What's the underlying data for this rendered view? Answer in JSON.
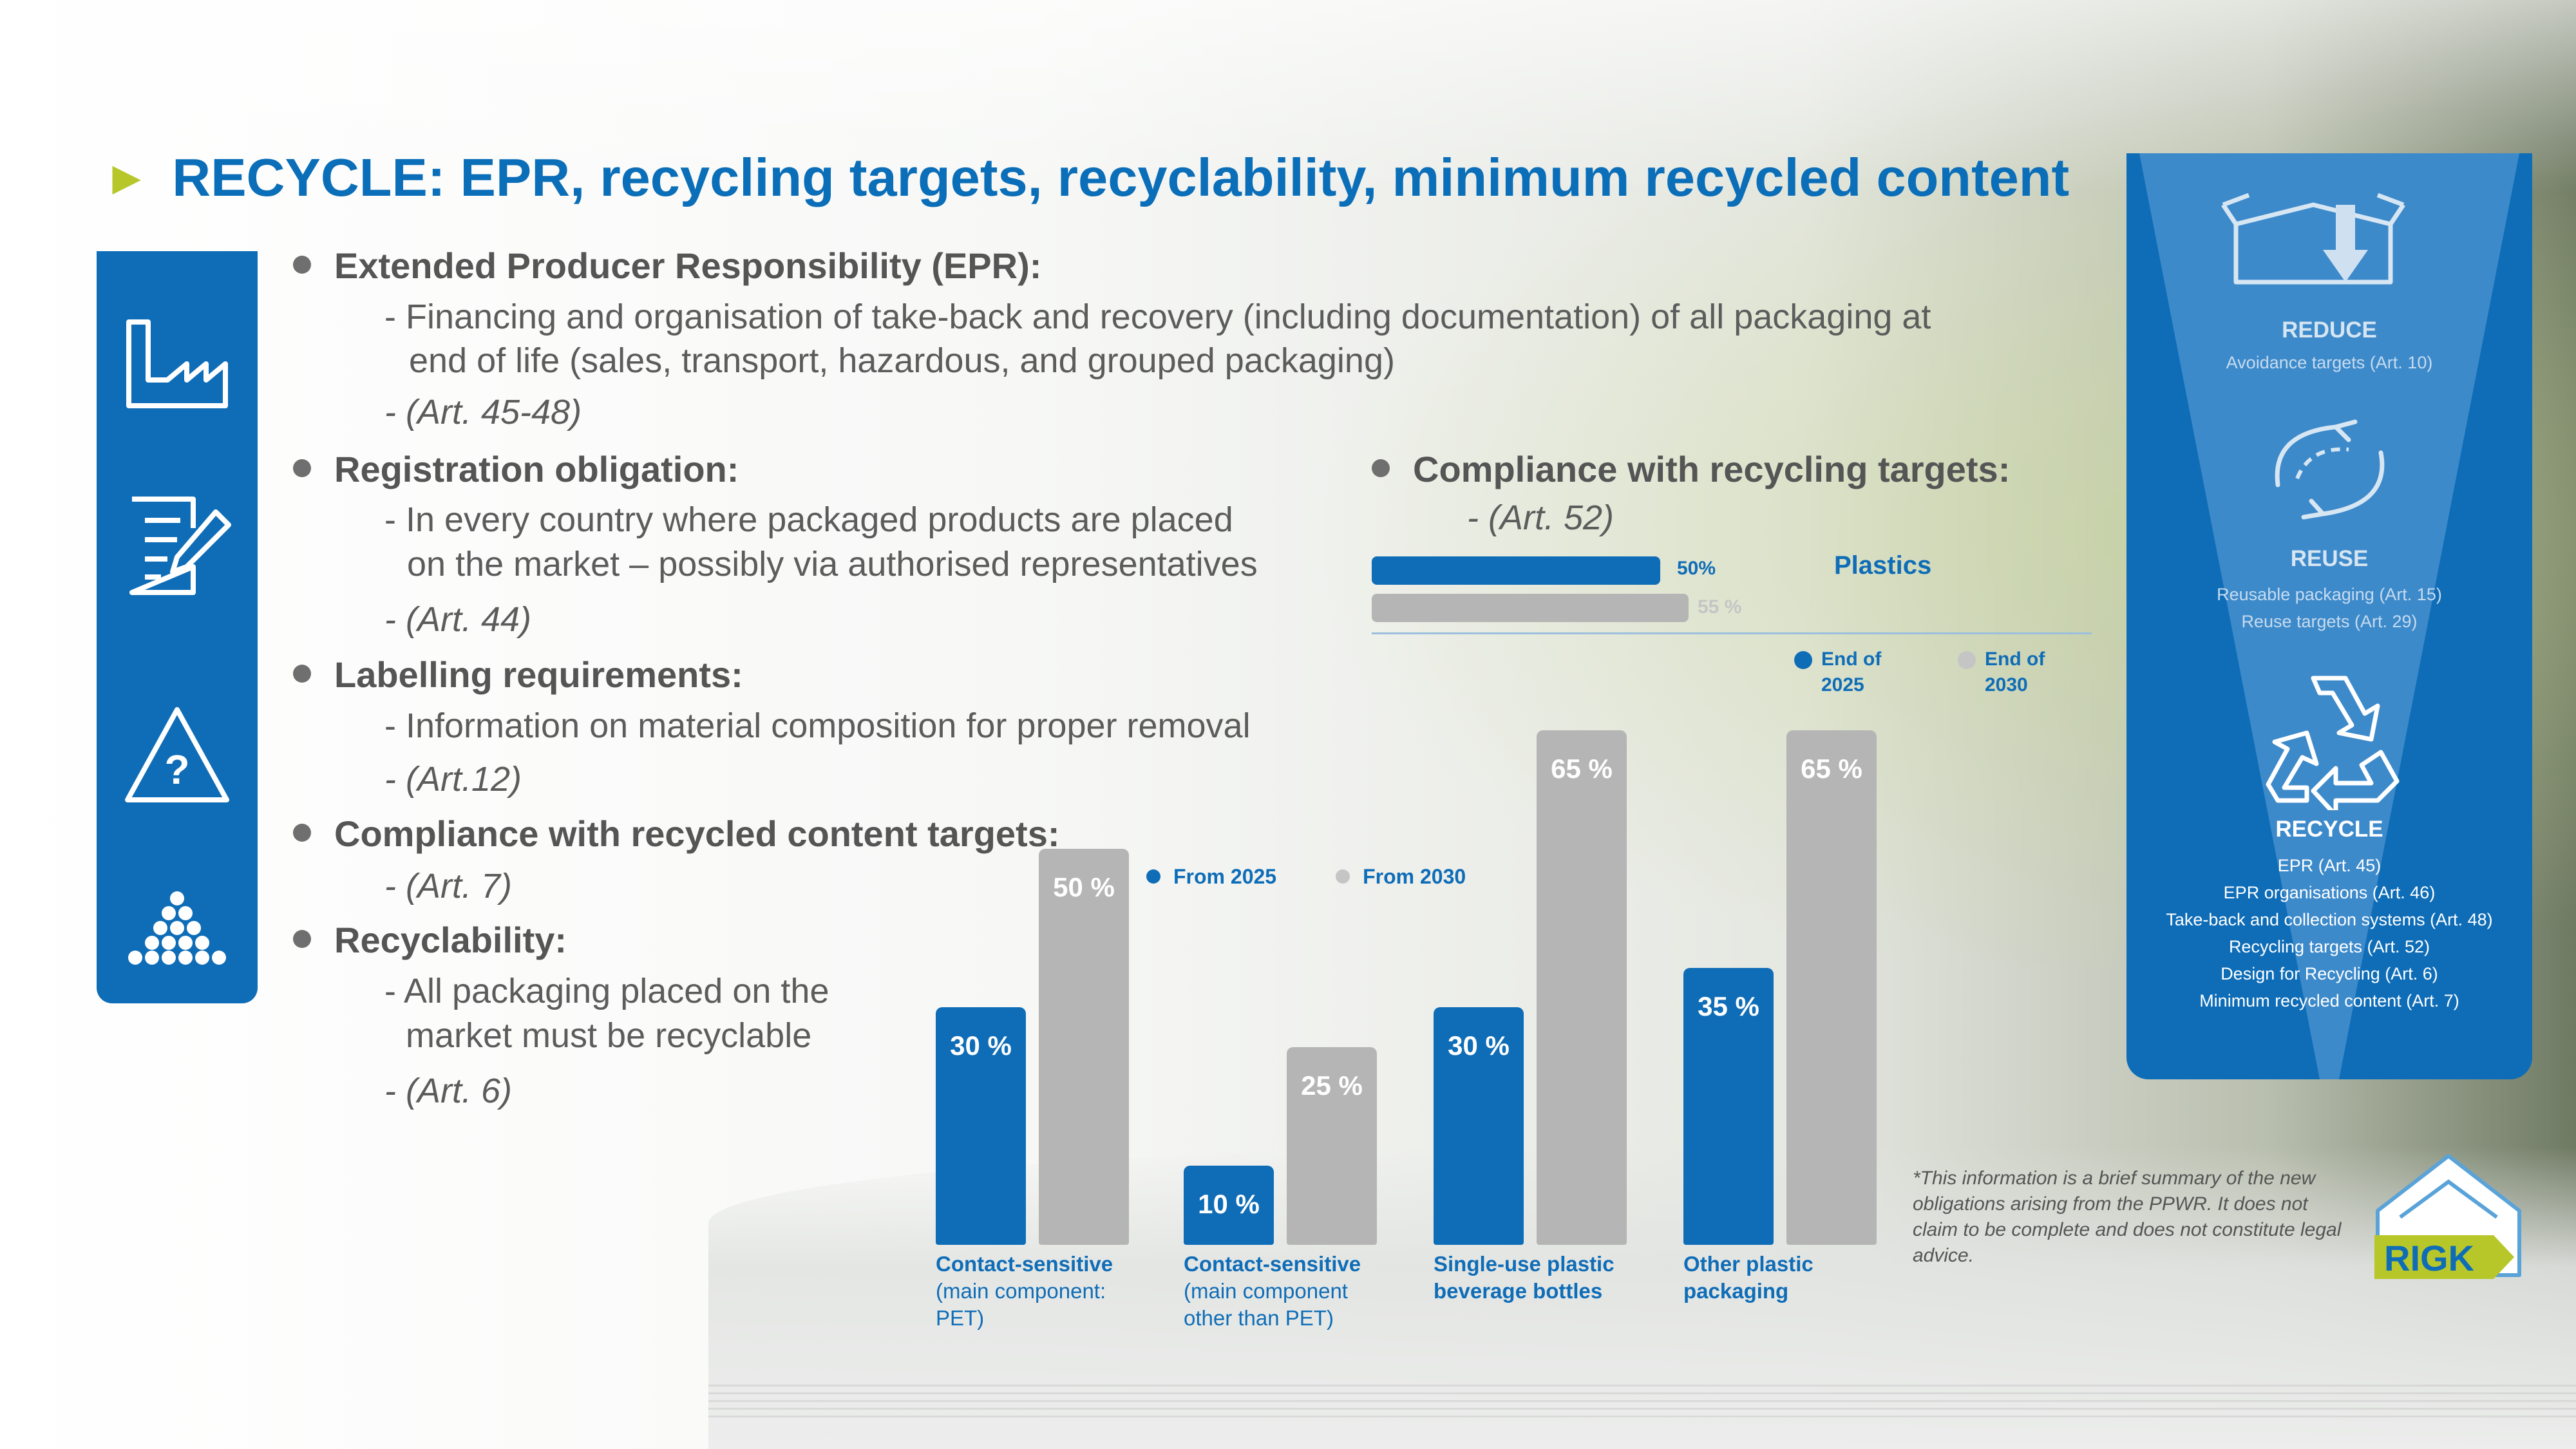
{
  "title": {
    "arrow": "►",
    "text": "RECYCLE: EPR, recycling targets, recyclability, minimum recycled content"
  },
  "sections": {
    "epr": {
      "heading": "Extended Producer Responsibility (EPR):",
      "line1": "- Financing and organisation of take-back and recovery (including documentation) of all packaging at",
      "line2": "end of life (sales, transport, hazardous, and grouped packaging)",
      "art": "- (Art. 45-48)"
    },
    "registration": {
      "heading": "Registration obligation:",
      "line1": "- In every country where packaged products are placed",
      "line2": "on the market – possibly via authorised representatives",
      "art": "- (Art. 44)"
    },
    "labelling": {
      "heading": "Labelling requirements:",
      "line1": "- Information on material composition for proper removal",
      "art": "- (Art.12)"
    },
    "recycled_content": {
      "heading": "Compliance with recycled content targets:",
      "art": "- (Art. 7)"
    },
    "recyclability": {
      "heading": "Recyclability:",
      "line1": "- All packaging placed on the",
      "line2": "market must be recyclable",
      "art": "- (Art. 6)"
    },
    "recycling_targets": {
      "heading": "Compliance with recycling targets:",
      "art": "- (Art. 52)"
    }
  },
  "plastics_chart": {
    "label": "Plastics",
    "bar2025_label": "50%",
    "bar2030_label": "55 %",
    "legend_2025": [
      "End of",
      "2025"
    ],
    "legend_2030": [
      "End of",
      "2030"
    ]
  },
  "chart_data": {
    "type": "bar",
    "title": "",
    "legend": [
      "From 2025",
      "From 2030"
    ],
    "categories": [
      [
        "Contact-sensitive",
        "(main component:",
        "PET)"
      ],
      [
        "Contact-sensitive",
        "(main component",
        "other than PET)"
      ],
      [
        "Single-use plastic",
        "beverage bottles"
      ],
      [
        "Other plastic",
        "packaging"
      ]
    ],
    "series": [
      {
        "name": "From 2025",
        "values": [
          30,
          10,
          30,
          35
        ],
        "color": "#0f6db7"
      },
      {
        "name": "From 2030",
        "values": [
          50,
          25,
          65,
          65
        ],
        "color": "#b5b5b5"
      }
    ],
    "value_labels": [
      [
        "30 %",
        "50 %"
      ],
      [
        "10 %",
        "25 %"
      ],
      [
        "30 %",
        "65 %"
      ],
      [
        "35 %",
        "65 %"
      ]
    ],
    "ylim": [
      0,
      70
    ]
  },
  "right_panel": {
    "reduce": {
      "heading": "REDUCE",
      "items": [
        "Avoidance targets (Art. 10)"
      ]
    },
    "reuse": {
      "heading": "REUSE",
      "items": [
        "Reusable packaging (Art. 15)",
        "Reuse targets (Art. 29)"
      ]
    },
    "recycle": {
      "heading": "RECYCLE",
      "items": [
        "EPR (Art. 45)",
        "EPR organisations (Art. 46)",
        "Take-back and collection systems (Art. 48)",
        "Recycling targets (Art. 52)",
        "Design for Recycling (Art. 6)",
        "Minimum recycled content (Art. 7)"
      ]
    }
  },
  "disclaimer": "*This information is a brief summary of the new obligations arising from the PPWR. It does not claim to be complete and does not constitute legal advice.",
  "logo_text": "RIGK",
  "colors": {
    "brand_blue": "#0f6db7",
    "accent_green": "#b7c72a",
    "grey_bar": "#b5b5b5",
    "text_grey": "#555555"
  },
  "icons": [
    "factory-icon",
    "document-pen-icon",
    "warning-question-icon",
    "pellets-icon",
    "box-arrow-icon",
    "reuse-arrows-icon",
    "recycle-icon"
  ]
}
